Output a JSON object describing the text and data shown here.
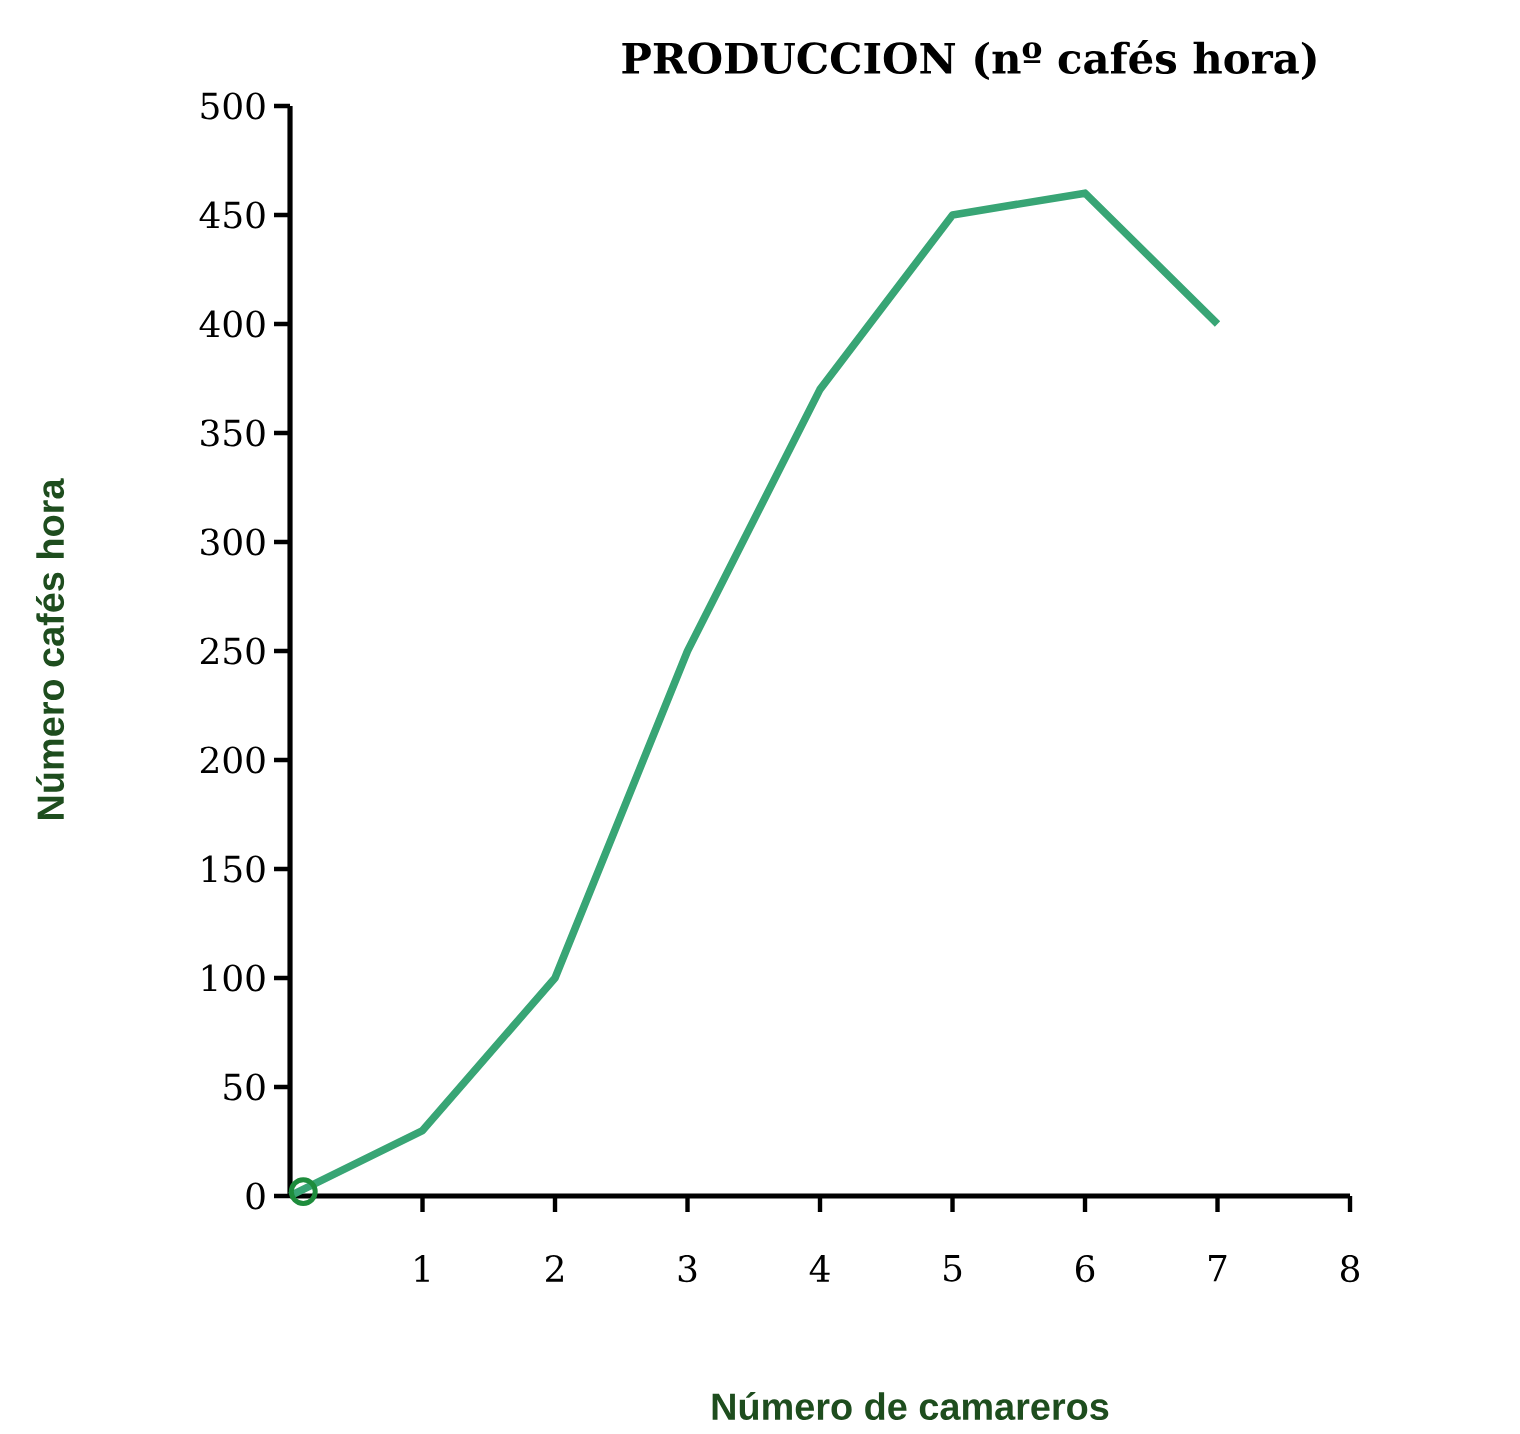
{
  "chart_data": {
    "type": "line",
    "title": "PRODUCCION  (nº cafés hora)",
    "xlabel": "Número de camareros",
    "ylabel": "Número cafés hora",
    "xlim": [
      0,
      8
    ],
    "xticks": [
      1,
      2,
      3,
      4,
      5,
      6,
      7,
      8
    ],
    "ylim": [
      0,
      500
    ],
    "yticks": [
      0,
      50,
      100,
      150,
      200,
      250,
      300,
      350,
      400,
      450,
      500
    ],
    "series": [
      {
        "x": [
          0,
          1,
          2,
          3,
          4,
          5,
          6,
          7
        ],
        "values": [
          0,
          30,
          100,
          250,
          370,
          450,
          460,
          400
        ],
        "color": "#38a575",
        "marker": "none",
        "line_style": "solid"
      },
      {
        "type": "scatter",
        "x": [
          0.1
        ],
        "values": [
          2
        ],
        "color": "#1e8c3c",
        "marker": "circle"
      }
    ]
  }
}
